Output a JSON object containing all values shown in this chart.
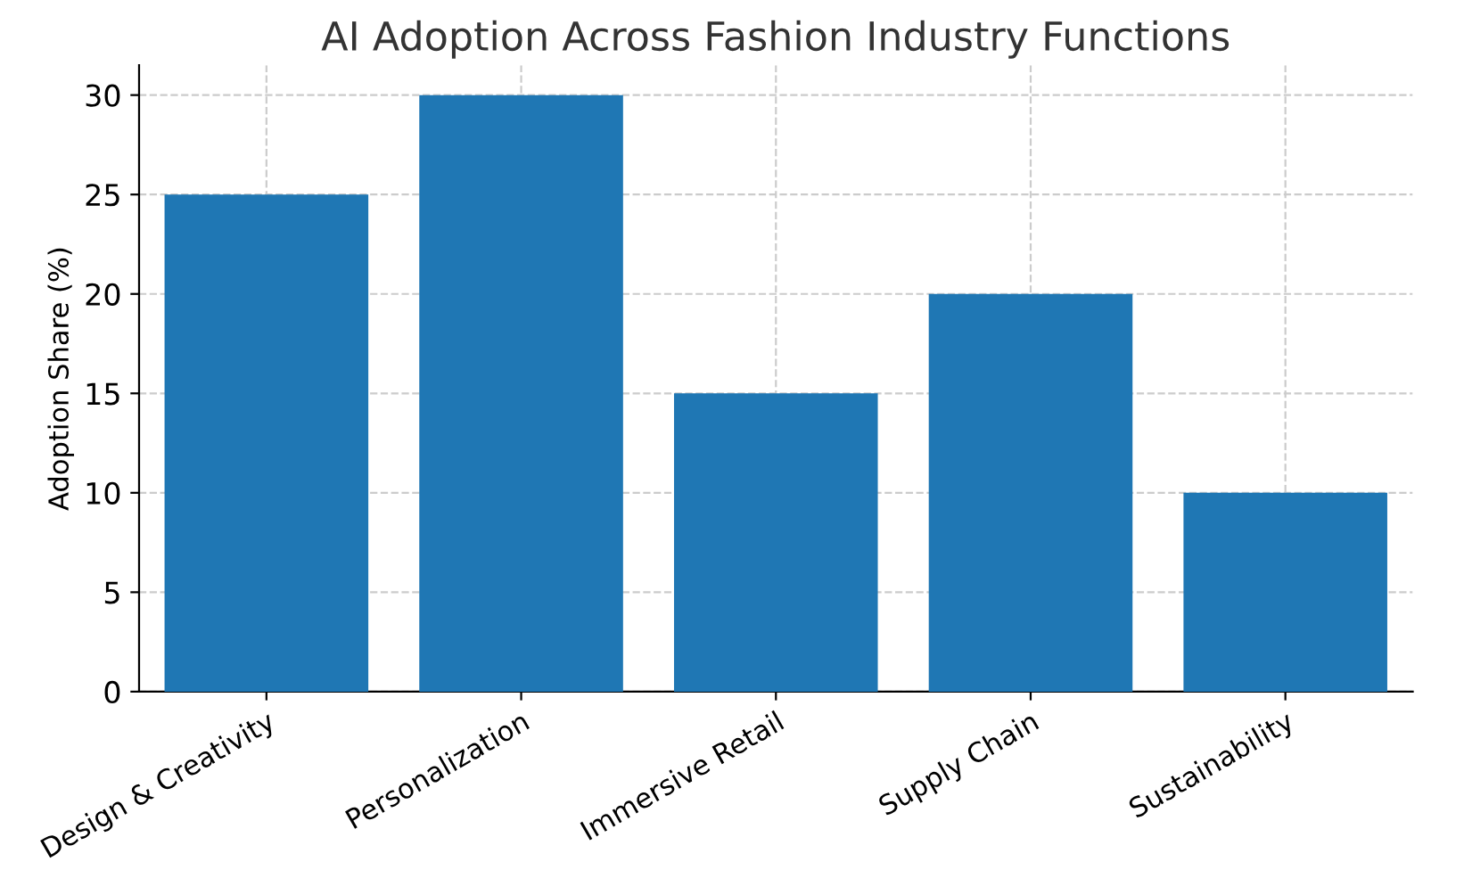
{
  "chart_data": {
    "type": "bar",
    "title": "AI Adoption Across Fashion Industry Functions",
    "ylabel": "Adoption Share (%)",
    "categories": [
      "Design & Creativity",
      "Personalization",
      "Immersive Retail",
      "Supply Chain",
      "Sustainability"
    ],
    "values": [
      25,
      30,
      15,
      20,
      10
    ],
    "color": "#1f77b4",
    "ylim": [
      0,
      31.5
    ],
    "yticks": [
      0,
      5,
      10,
      15,
      20,
      25,
      30
    ],
    "grid": true
  }
}
